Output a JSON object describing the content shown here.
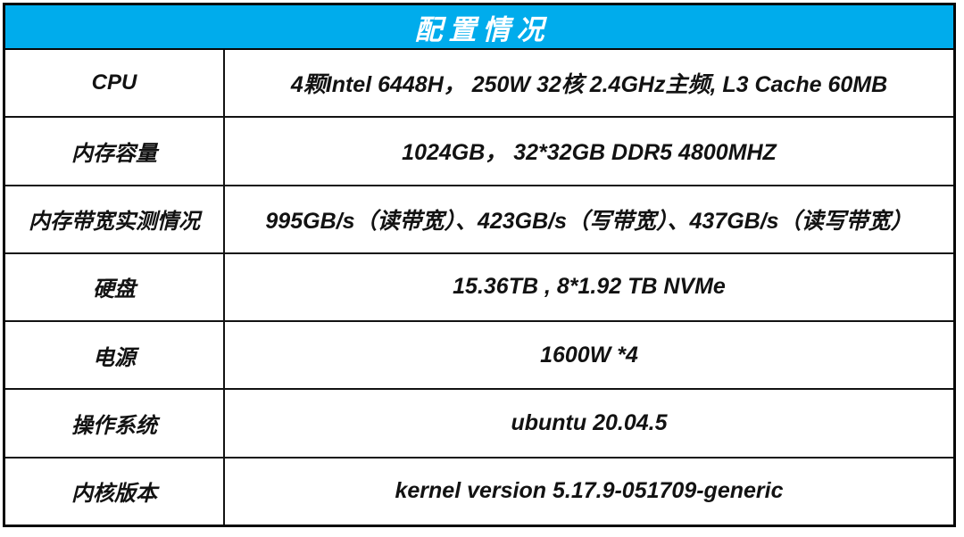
{
  "table": {
    "title": "配置情况",
    "colors": {
      "header_bg": "#00ACEC",
      "header_text": "#ffffff",
      "border": "#060606",
      "text": "#121212"
    },
    "rows": [
      {
        "label": "CPU",
        "value": "4颗Intel 6448H， 250W 32核 2.4GHz主频, L3 Cache 60MB"
      },
      {
        "label": "内存容量",
        "value": "1024GB， 32*32GB DDR5 4800MHZ"
      },
      {
        "label": "内存带宽实测情况",
        "value": "995GB/s（读带宽）、423GB/s（写带宽）、437GB/s（读写带宽）"
      },
      {
        "label": "硬盘",
        "value": "15.36TB , 8*1.92 TB NVMe"
      },
      {
        "label": "电源",
        "value": "1600W *4"
      },
      {
        "label": "操作系统",
        "value": "ubuntu 20.04.5"
      },
      {
        "label": "内核版本",
        "value": "kernel version 5.17.9-051709-generic"
      }
    ]
  }
}
